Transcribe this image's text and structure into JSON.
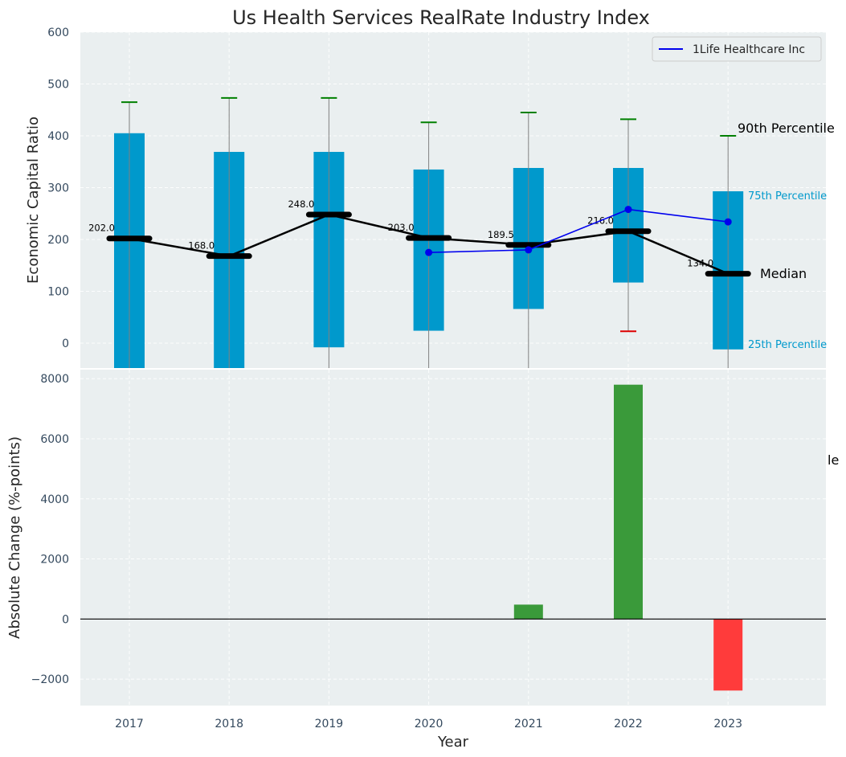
{
  "title": "Us Health Services RealRate Industry Index",
  "chart_data": [
    {
      "type": "box",
      "title": "Us Health Services RealRate Industry Index",
      "ylabel": "Economic Capital Ratio",
      "xlabel": "",
      "ylim": [
        -48,
        600
      ],
      "yticks": [
        0,
        100,
        200,
        300,
        400,
        500,
        600
      ],
      "categories": [
        "2017",
        "2018",
        "2019",
        "2020",
        "2021",
        "2022",
        "2023"
      ],
      "p25": [
        -48,
        -48,
        -8,
        24,
        66,
        117,
        -12
      ],
      "p75": [
        405,
        369,
        369,
        335,
        338,
        338,
        293
      ],
      "p90": [
        465,
        473,
        473,
        426,
        445,
        432,
        400
      ],
      "p10": [
        null,
        null,
        null,
        null,
        null,
        23,
        null
      ],
      "median": [
        202.0,
        168.0,
        248.0,
        203.0,
        189.5,
        216.0,
        134.0
      ],
      "median_labels": [
        "202.0",
        "168.0",
        "248.0",
        "203.0",
        "189.5",
        "216.0",
        "134.0"
      ],
      "series": [
        {
          "name": "1Life Healthcare Inc",
          "color": "#0000ee",
          "x": [
            "2020",
            "2021",
            "2022",
            "2023"
          ],
          "values": [
            175,
            180,
            258,
            234
          ]
        }
      ],
      "annotations": {
        "p90": "90th Percentile",
        "p75": "75th Percentile",
        "median": "Median",
        "p25": "25th Percentile"
      },
      "legend_position": "top-right",
      "grid": true
    },
    {
      "type": "bar",
      "ylabel": "Absolute Change (%-points)",
      "xlabel": "Year",
      "ylim": [
        -2880,
        8300
      ],
      "yticks": [
        -2000,
        0,
        2000,
        4000,
        6000,
        8000
      ],
      "ytick_labels": [
        "−2000",
        "0",
        "2000",
        "4000",
        "6000",
        "8000"
      ],
      "categories": [
        "2017",
        "2018",
        "2019",
        "2020",
        "2021",
        "2022",
        "2023"
      ],
      "values": [
        0,
        0,
        0,
        0,
        480,
        7800,
        -2380
      ],
      "colors": {
        "positive": "#3a9a3a",
        "negative": "#ff3b3b"
      },
      "clipped_text": "le",
      "grid": true
    }
  ],
  "colors": {
    "box": "#0099cc",
    "median": "#000000",
    "whisker_cap_top": "#008000",
    "whisker_cap_bottom": "#dd0000",
    "company": "#0000ee"
  }
}
